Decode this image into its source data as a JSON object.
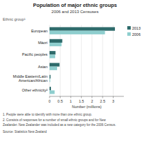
{
  "chart_data": {
    "type": "bar",
    "orientation": "horizontal",
    "title": "Population of major ethnic groups",
    "subtitle": "2006 and 2013 Censuses",
    "xlabel": "Number (millions)",
    "ylabel": "Ethnic group¹",
    "categories": [
      "European",
      "Māori",
      "Pacific peoples",
      "Asian",
      "Middle Eastern/Latin\nAmerican/African",
      "Other ethnicity²"
    ],
    "series": [
      {
        "name": "2013",
        "color": "#2e6b6b",
        "values": [
          3.08,
          0.6,
          0.28,
          0.47,
          0.046,
          0.067
        ]
      },
      {
        "name": "2006",
        "color": "#8ecece",
        "values": [
          2.61,
          0.565,
          0.265,
          0.355,
          0.034,
          0.24
        ]
      }
    ],
    "xlim": [
      0,
      3.5
    ],
    "xticks": [
      0,
      0.5,
      1,
      1.5,
      2,
      2.5,
      3
    ],
    "grid": true,
    "legend": "upper right",
    "annotations": [
      "1.  People  were able to identify with more than one ethnic group.",
      "2.  Consists of responses for a number of small ethnic groups and for New",
      "Zealander. New Zealander was included as a new category for the 2006 Census.",
      "Source: Statistics New Zealand"
    ]
  }
}
